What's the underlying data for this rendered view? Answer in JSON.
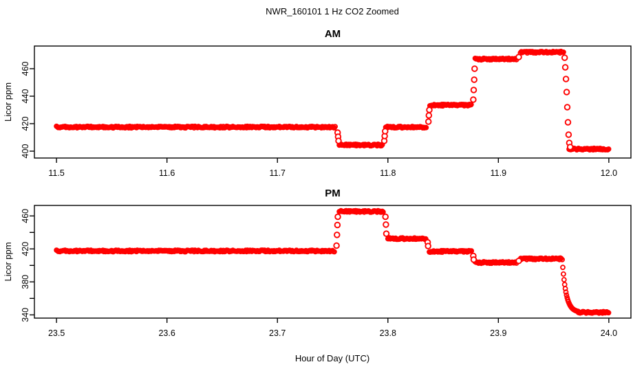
{
  "figure": {
    "title": "NWR_160101  1 Hz CO2 Zoomed",
    "xlabel": "Hour of Day (UTC)",
    "background_color": "#FFFFFF",
    "axis_color": "#000000",
    "point_color": "#FF0000",
    "marker": "open-circle"
  },
  "chart_data": [
    {
      "type": "scatter",
      "panel": "AM",
      "title": "AM",
      "ylabel": "Licor ppm",
      "xlim": [
        11.48,
        12.02
      ],
      "ylim": [
        395.0,
        476.5
      ],
      "grid": false,
      "x_ticks": [
        11.5,
        11.6,
        11.7,
        11.8,
        11.9,
        12.0
      ],
      "x_tick_labels": [
        "11.5",
        "11.6",
        "11.7",
        "11.8",
        "11.9",
        "12.0"
      ],
      "y_ticks": [
        400,
        420,
        440,
        460
      ],
      "y_tick_labels": [
        "400",
        "420",
        "440",
        "460"
      ],
      "segments": [
        {
          "x_start": 11.5,
          "x_end": 11.753,
          "value": 417.5
        },
        {
          "x_start": 11.756,
          "x_end": 11.795,
          "value": 404.5
        },
        {
          "x_start": 11.798,
          "x_end": 11.835,
          "value": 417.5
        },
        {
          "x_start": 11.838,
          "x_end": 11.876,
          "value": 433.5
        },
        {
          "x_start": 11.879,
          "x_end": 11.917,
          "value": 467.0
        },
        {
          "x_start": 11.92,
          "x_end": 11.959,
          "value": 472.0
        },
        {
          "x_start": 11.964,
          "x_end": 12.0,
          "value": 401.5
        }
      ],
      "transition_points": [
        {
          "x": 11.7545,
          "value": 413.5
        },
        {
          "x": 11.7549,
          "value": 410.5
        },
        {
          "x": 11.7553,
          "value": 407.5
        },
        {
          "x": 11.7967,
          "value": 407.5
        },
        {
          "x": 11.7971,
          "value": 411.0
        },
        {
          "x": 11.7975,
          "value": 414.5
        },
        {
          "x": 11.8367,
          "value": 421.5
        },
        {
          "x": 11.8371,
          "value": 426.0
        },
        {
          "x": 11.8375,
          "value": 430.0
        },
        {
          "x": 11.8773,
          "value": 437.5
        },
        {
          "x": 11.8777,
          "value": 444.5
        },
        {
          "x": 11.8781,
          "value": 452.0
        },
        {
          "x": 11.8785,
          "value": 460.0
        },
        {
          "x": 11.9185,
          "value": 468.5
        },
        {
          "x": 11.96,
          "value": 468.0
        },
        {
          "x": 11.9606,
          "value": 461.0
        },
        {
          "x": 11.9612,
          "value": 452.5
        },
        {
          "x": 11.9618,
          "value": 443.0
        },
        {
          "x": 11.9624,
          "value": 432.0
        },
        {
          "x": 11.963,
          "value": 421.0
        },
        {
          "x": 11.9636,
          "value": 412.0
        },
        {
          "x": 11.9642,
          "value": 406.0
        },
        {
          "x": 11.965,
          "value": 403.0
        }
      ]
    },
    {
      "type": "scatter",
      "panel": "PM",
      "title": "PM",
      "ylabel": "Licor ppm",
      "xlim": [
        23.48,
        24.02
      ],
      "ylim": [
        336.1,
        472.75
      ],
      "grid": false,
      "x_ticks": [
        23.5,
        23.6,
        23.7,
        23.8,
        23.9,
        24.0
      ],
      "x_tick_labels": [
        "23.5",
        "23.6",
        "23.7",
        "23.8",
        "23.9",
        "24.0"
      ],
      "y_ticks": [
        340,
        360,
        380,
        400,
        420,
        440,
        460
      ],
      "y_tick_labels": [
        "340",
        "",
        "380",
        "",
        "420",
        "",
        "460"
      ],
      "segments": [
        {
          "x_start": 23.5,
          "x_end": 23.752,
          "value": 417.5
        },
        {
          "x_start": 23.756,
          "x_end": 23.796,
          "value": 465.5
        },
        {
          "x_start": 23.8,
          "x_end": 23.8345,
          "value": 432.5
        },
        {
          "x_start": 23.8375,
          "x_end": 23.876,
          "value": 417.0
        },
        {
          "x_start": 23.879,
          "x_end": 23.917,
          "value": 403.5
        },
        {
          "x_start": 23.9195,
          "x_end": 23.9575,
          "value": 408.0
        },
        {
          "x_start": 23.9725,
          "x_end": 24.0,
          "value": 343.0
        }
      ],
      "transition_points": [
        {
          "x": 23.7535,
          "value": 424.0
        },
        {
          "x": 23.7539,
          "value": 437.0
        },
        {
          "x": 23.7543,
          "value": 449.0
        },
        {
          "x": 23.7547,
          "value": 459.0
        },
        {
          "x": 23.7978,
          "value": 459.0
        },
        {
          "x": 23.7982,
          "value": 449.5
        },
        {
          "x": 23.7986,
          "value": 438.5
        },
        {
          "x": 23.836,
          "value": 428.0
        },
        {
          "x": 23.8364,
          "value": 423.5
        },
        {
          "x": 23.8773,
          "value": 411.5
        },
        {
          "x": 23.8777,
          "value": 407.0
        },
        {
          "x": 23.9185,
          "value": 405.5
        }
      ],
      "decay": {
        "x_start": 23.9578,
        "value_start": 407.0,
        "x_end": 23.9725,
        "value_end": 343.2,
        "tau": 0.0035
      }
    }
  ]
}
